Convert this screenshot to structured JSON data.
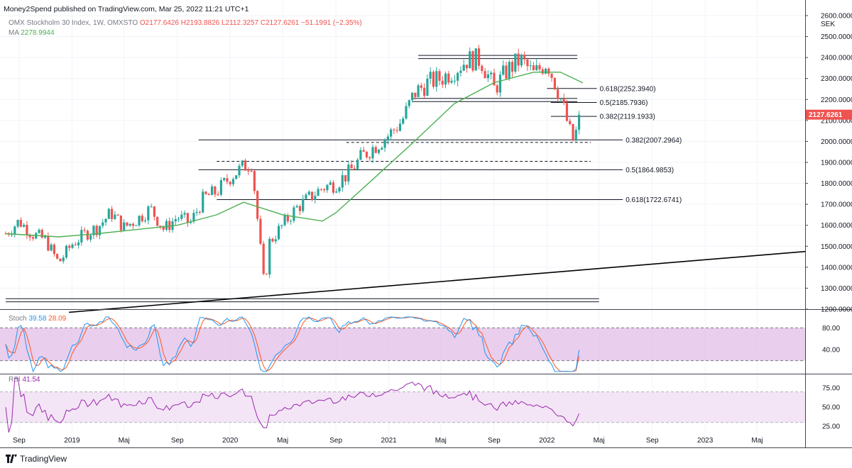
{
  "header": {
    "published": "Money2Spend published on TradingView.com, Mar 25, 2022 11:21 UTC+1",
    "symbol": "OMX Stockholm 30 Index, 1W, OMXSTO",
    "ohlc": "O2177.6426 H2193.8826 L2112.3257 C2127.6261 −51.1991 (−2.35%)",
    "ma_label": "MA",
    "ma_value": "2278.9944"
  },
  "stoch": {
    "label": "Stoch",
    "k": "39.58",
    "d": "28.09"
  },
  "rsi": {
    "label": "RSI",
    "value": "41.54"
  },
  "brand": {
    "name": "TradingView",
    "icon": "tradingview-logo-icon"
  },
  "colors": {
    "up": "#26a69a",
    "down": "#ef5350",
    "ma": "#4caf50",
    "stoch_k": "#2196f3",
    "stoch_d": "#ff5722",
    "rsi": "#9c27b0",
    "band": "#e1bee7",
    "rsi_band": "#f3e5f5"
  },
  "chart_data": [
    {
      "type": "candlestick",
      "currency": "SEK",
      "price_label": "2127.6261",
      "ylim": [
        1200,
        2600
      ],
      "y_ticks": [
        "2600.0000",
        "2500.0000",
        "2400.0000",
        "2300.0000",
        "2200.0000",
        "2100.0000",
        "2000.0000",
        "1900.0000",
        "1800.0000",
        "1700.0000",
        "1600.0000",
        "1500.0000",
        "1400.0000",
        "1300.0000",
        "1200.0000"
      ],
      "x_ticks": [
        "Sep",
        "2019",
        "Maj",
        "Sep",
        "2020",
        "Maj",
        "Sep",
        "2021",
        "Maj",
        "Sep",
        "2022",
        "Maj",
        "Sep",
        "2023",
        "Maj"
      ],
      "close_path": [
        [
          "2018-08-01",
          1560
        ],
        [
          "2018-09-01",
          1620
        ],
        [
          "2018-10-01",
          1560
        ],
        [
          "2018-11-01",
          1530
        ],
        [
          "2018-12-01",
          1420
        ],
        [
          "2019-01-01",
          1510
        ],
        [
          "2019-02-01",
          1560
        ],
        [
          "2019-03-01",
          1590
        ],
        [
          "2019-04-01",
          1660
        ],
        [
          "2019-05-01",
          1590
        ],
        [
          "2019-06-01",
          1630
        ],
        [
          "2019-07-01",
          1680
        ],
        [
          "2019-08-01",
          1580
        ],
        [
          "2019-09-01",
          1640
        ],
        [
          "2019-10-01",
          1610
        ],
        [
          "2019-11-01",
          1730
        ],
        [
          "2019-12-01",
          1760
        ],
        [
          "2020-01-01",
          1830
        ],
        [
          "2020-02-01",
          1880
        ],
        [
          "2020-02-20",
          1900
        ],
        [
          "2020-03-20",
          1300
        ],
        [
          "2020-04-01",
          1520
        ],
        [
          "2020-05-01",
          1600
        ],
        [
          "2020-06-01",
          1680
        ],
        [
          "2020-07-01",
          1730
        ],
        [
          "2020-08-01",
          1780
        ],
        [
          "2020-09-01",
          1800
        ],
        [
          "2020-10-01",
          1850
        ],
        [
          "2020-11-01",
          1930
        ],
        [
          "2020-12-01",
          1980
        ],
        [
          "2021-01-01",
          2030
        ],
        [
          "2021-02-01",
          2100
        ],
        [
          "2021-03-01",
          2230
        ],
        [
          "2021-04-01",
          2280
        ],
        [
          "2021-05-01",
          2300
        ],
        [
          "2021-06-01",
          2340
        ],
        [
          "2021-07-01",
          2390
        ],
        [
          "2021-08-01",
          2390
        ],
        [
          "2021-09-01",
          2250
        ],
        [
          "2021-10-01",
          2340
        ],
        [
          "2021-11-01",
          2390
        ],
        [
          "2021-12-01",
          2320
        ],
        [
          "2022-01-01",
          2380
        ],
        [
          "2022-02-01",
          2210
        ],
        [
          "2022-03-01",
          2000
        ],
        [
          "2022-03-25",
          2127.6261
        ]
      ],
      "ma": [
        [
          "2018-08-01",
          1560
        ],
        [
          "2018-12-01",
          1545
        ],
        [
          "2019-03-01",
          1560
        ],
        [
          "2019-06-01",
          1580
        ],
        [
          "2019-09-01",
          1600
        ],
        [
          "2019-12-01",
          1650
        ],
        [
          "2020-02-01",
          1710
        ],
        [
          "2020-05-01",
          1650
        ],
        [
          "2020-08-01",
          1620
        ],
        [
          "2020-09-01",
          1660
        ],
        [
          "2020-12-01",
          1830
        ],
        [
          "2021-03-01",
          2000
        ],
        [
          "2021-06-01",
          2180
        ],
        [
          "2021-09-01",
          2280
        ],
        [
          "2021-12-01",
          2330
        ],
        [
          "2022-02-01",
          2330
        ],
        [
          "2022-03-25",
          2279
        ]
      ],
      "fibonacci": [
        {
          "label": "0.618(2252.3940)",
          "price": 2252.394
        },
        {
          "label": "0.5(2185.7936)",
          "price": 2185.7936
        },
        {
          "label": "0.382(2119.1933)",
          "price": 2119.1933
        },
        {
          "label": "0.382(2007.2964)",
          "price": 2007.2964
        },
        {
          "label": "0.5(1864.9853)",
          "price": 1864.9853
        },
        {
          "label": "0.618(1722.6741)",
          "price": 1722.6741
        }
      ],
      "resistance": [
        2400,
        2200
      ],
      "support_dashed": [
        1995,
        1905
      ],
      "trendline": [
        [
          "2018-12-25",
          1185
        ],
        [
          "2023-09-20",
          1475
        ]
      ]
    },
    {
      "type": "line",
      "name": "Stoch",
      "ylim": [
        0,
        100
      ],
      "y_ticks": [
        "80.00",
        "40.00"
      ],
      "bands": [
        80,
        20
      ],
      "k_last": 39.58,
      "d_last": 28.09
    },
    {
      "type": "line",
      "name": "RSI",
      "ylim": [
        15,
        90
      ],
      "y_ticks": [
        "75.00",
        "50.00",
        "25.00"
      ],
      "bands": [
        70,
        30
      ],
      "last": 41.54
    }
  ]
}
